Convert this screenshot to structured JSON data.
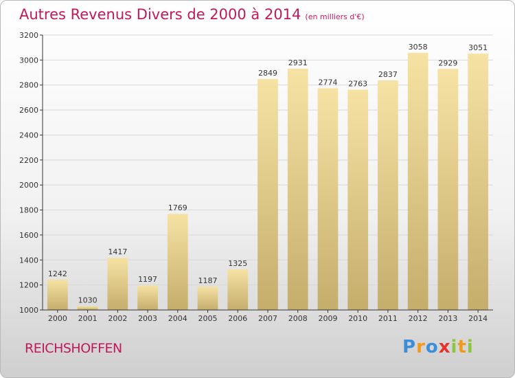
{
  "title": "Autres Revenus Divers de 2000 à 2014",
  "subtitle": "(en milliers d'€)",
  "city": "REICHSHOFFEN",
  "brand": {
    "letters": [
      "P",
      "r",
      "o",
      "x",
      "i",
      "t",
      "i"
    ],
    "colors": [
      "#3b8fd8",
      "#f29a1b",
      "#3b8fd8",
      "#e6312e",
      "#8cc63e",
      "#f29a1b",
      "#8cc63e"
    ]
  },
  "colors": {
    "title": "#c2185b",
    "bar_top": "#f6e3a4",
    "bar_bottom": "#c5ad6c",
    "grid": "#d8d8d8",
    "axis": "#333333"
  },
  "chart_data": {
    "type": "bar",
    "title": "Autres Revenus Divers de 2000 à 2014",
    "subtitle": "(en milliers d'€)",
    "xlabel": "",
    "ylabel": "",
    "categories": [
      "2000",
      "2001",
      "2002",
      "2003",
      "2004",
      "2005",
      "2006",
      "2007",
      "2008",
      "2009",
      "2010",
      "2011",
      "2012",
      "2013",
      "2014"
    ],
    "values": [
      1242,
      1030,
      1417,
      1197,
      1769,
      1187,
      1325,
      2849,
      2931,
      2774,
      2763,
      2837,
      3058,
      2929,
      3051
    ],
    "ylim": [
      1000,
      3200
    ],
    "yticks": [
      1000,
      1200,
      1400,
      1600,
      1800,
      2000,
      2200,
      2400,
      2600,
      2800,
      3000,
      3200
    ],
    "grid": true,
    "legend": "none"
  }
}
